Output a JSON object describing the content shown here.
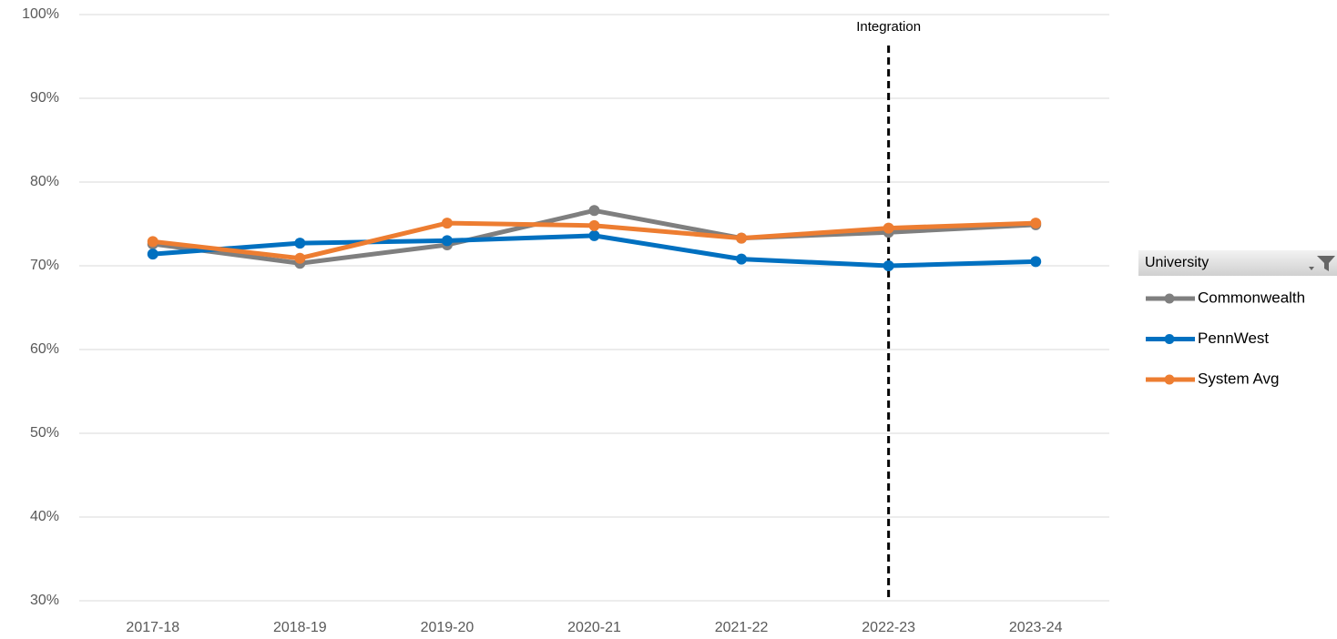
{
  "chart_data": {
    "type": "line",
    "categories": [
      "2017-18",
      "2018-19",
      "2019-20",
      "2020-21",
      "2021-22",
      "2022-23",
      "2023-24"
    ],
    "series": [
      {
        "name": "Commonwealth",
        "color": "#7f7f7f",
        "values": [
          72.6,
          70.3,
          72.5,
          76.6,
          73.3,
          74.0,
          74.9
        ]
      },
      {
        "name": "PennWest",
        "color": "#0070c0",
        "values": [
          71.4,
          72.7,
          73.0,
          73.6,
          70.8,
          70.0,
          70.5
        ]
      },
      {
        "name": "System Avg",
        "color": "#ed7d31",
        "values": [
          72.9,
          70.9,
          75.1,
          74.8,
          73.3,
          74.5,
          75.1
        ]
      }
    ],
    "ylim": [
      30,
      100
    ],
    "yticks": [
      {
        "value": 30,
        "label": "30%"
      },
      {
        "value": 40,
        "label": "40%"
      },
      {
        "value": 50,
        "label": "50%"
      },
      {
        "value": 60,
        "label": "60%"
      },
      {
        "value": 70,
        "label": "70%"
      },
      {
        "value": 80,
        "label": "80%"
      },
      {
        "value": 90,
        "label": "90%"
      },
      {
        "value": 100,
        "label": "100%"
      }
    ],
    "grid": true,
    "legend_title": "University",
    "legend_position": "right",
    "annotations": [
      {
        "label": "Integration",
        "x": "2022-23"
      }
    ]
  }
}
